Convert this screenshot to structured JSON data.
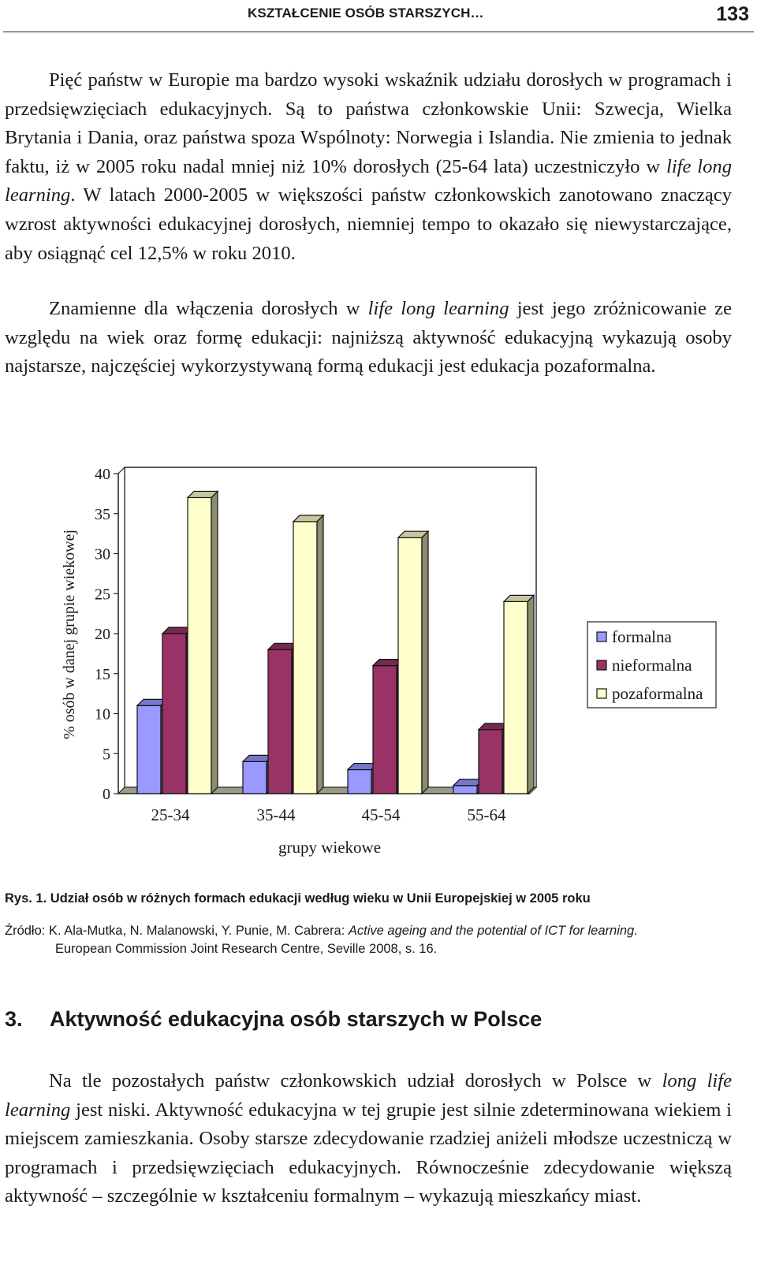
{
  "header": {
    "running_title": "KSZTAŁCENIE OSÓB STARSZYCH…",
    "page_number": "133"
  },
  "paragraphs": {
    "p1": {
      "a": "Pięć państw w Europie ma bardzo wysoki wskaźnik udziału dorosłych w programach i przedsięwzięciach edukacyjnych. Są to państwa członkowskie Unii: Szwecja, Wielka Brytania i Dania, oraz państwa spoza Wspólnoty: Norwegia i Islandia. Nie zmienia to jednak faktu, iż w 2005 roku nadal mniej niż 10% dorosłych (25-64 lata) uczestniczyło w ",
      "em": "life long learning",
      "b": ". W latach 2000-2005 w większości państw członkowskich zanotowano znaczący wzrost aktywności edukacyjnej dorosłych, niemniej tempo to okazało się niewystarczające, aby osiągnąć cel 12,5% w roku 2010."
    },
    "p2": {
      "a": "Znamienne dla włączenia dorosłych w ",
      "em": "life long learning",
      "b": " jest jego zróżnicowanie ze względu na wiek oraz formę edukacji: najniższą aktywność edukacyjną wykazują osoby najstarsze, najczęściej wykorzystywaną formą edukacji jest edukacja pozaformalna."
    },
    "p3": {
      "a": "Na tle pozostałych państw członkowskich udział dorosłych w Polsce w ",
      "em": "long life learning",
      "b": " jest niski. Aktywność edukacyjna w tej grupie jest silnie zdeterminowana wiekiem i miejscem zamieszkania. Osoby starsze zdecydowanie rzadziej aniżeli młodsze uczestniczą w programach i przedsięwzięciach edukacyjnych. Równocześnie zdecydowanie większą aktywność – szczególnie w kształceniu formalnym – wykazują mieszkańcy miast."
    }
  },
  "chart_data": {
    "type": "bar",
    "categories": [
      "25-34",
      "35-44",
      "45-54",
      "55-64"
    ],
    "series": [
      {
        "name": "formalna",
        "values": [
          11,
          4,
          3,
          1
        ],
        "color": "#9999ff"
      },
      {
        "name": "nieformalna",
        "values": [
          20,
          18,
          16,
          8
        ],
        "color": "#993366"
      },
      {
        "name": "pozaformalna",
        "values": [
          37,
          34,
          32,
          24
        ],
        "color": "#ffffcc"
      }
    ],
    "xlabel": "grupy wiekowe",
    "ylabel": "% osób w danej grupie wiekowej",
    "ylim": [
      0,
      40
    ],
    "yticks": [
      0,
      5,
      10,
      15,
      20,
      25,
      30,
      35,
      40
    ],
    "legend_position": "right",
    "style": "3d",
    "grid": false
  },
  "figure": {
    "caption": "Rys. 1. Udział osób w różnych formach edukacji według wieku w Unii Europejskiej w 2005 roku",
    "source_prefix": "Źródło: K. Ala-Mutka, N. Malanowski, Y. Punie, M. Cabrera: ",
    "source_title": "Active ageing and the potential of ICT for learning.",
    "source_rest": "European Commission Joint Research Centre, Seville 2008, s. 16."
  },
  "section": {
    "number": "3.",
    "title": "Aktywność edukacyjna osób starszych w Polsce"
  }
}
